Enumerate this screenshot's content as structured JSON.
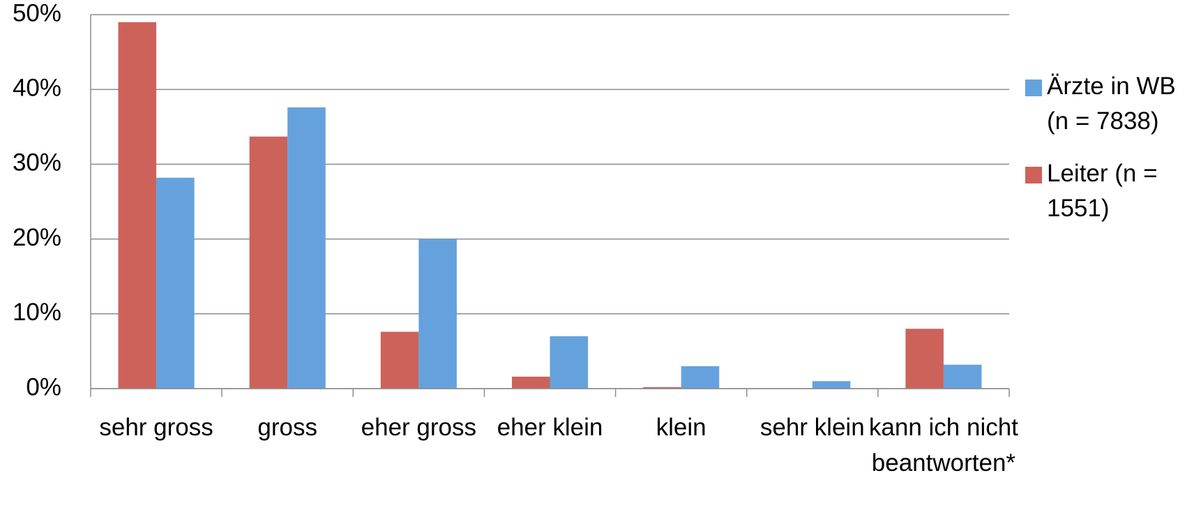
{
  "chart_data": {
    "type": "bar",
    "categories": [
      "sehr gross",
      "gross",
      "eher gross",
      "eher klein",
      "klein",
      "sehr klein",
      "kann ich nicht beantworten*"
    ],
    "series": [
      {
        "name": "Leiter (n = 1551)",
        "color": "#cd625a",
        "values": [
          49,
          33.7,
          7.6,
          1.6,
          0.2,
          0,
          8
        ]
      },
      {
        "name": "Ärzte in WB (n = 7838)",
        "color": "#65a2dd",
        "values": [
          28.2,
          37.6,
          20,
          7,
          3,
          1,
          3.2
        ]
      }
    ],
    "ylim": [
      0,
      50
    ],
    "yticks": [
      {
        "value": 0,
        "label": "0%"
      },
      {
        "value": 10,
        "label": "10%"
      },
      {
        "value": 20,
        "label": "20%"
      },
      {
        "value": 30,
        "label": "30%"
      },
      {
        "value": 40,
        "label": "40%"
      },
      {
        "value": 50,
        "label": "50%"
      }
    ],
    "grid": true,
    "legend": "right"
  }
}
